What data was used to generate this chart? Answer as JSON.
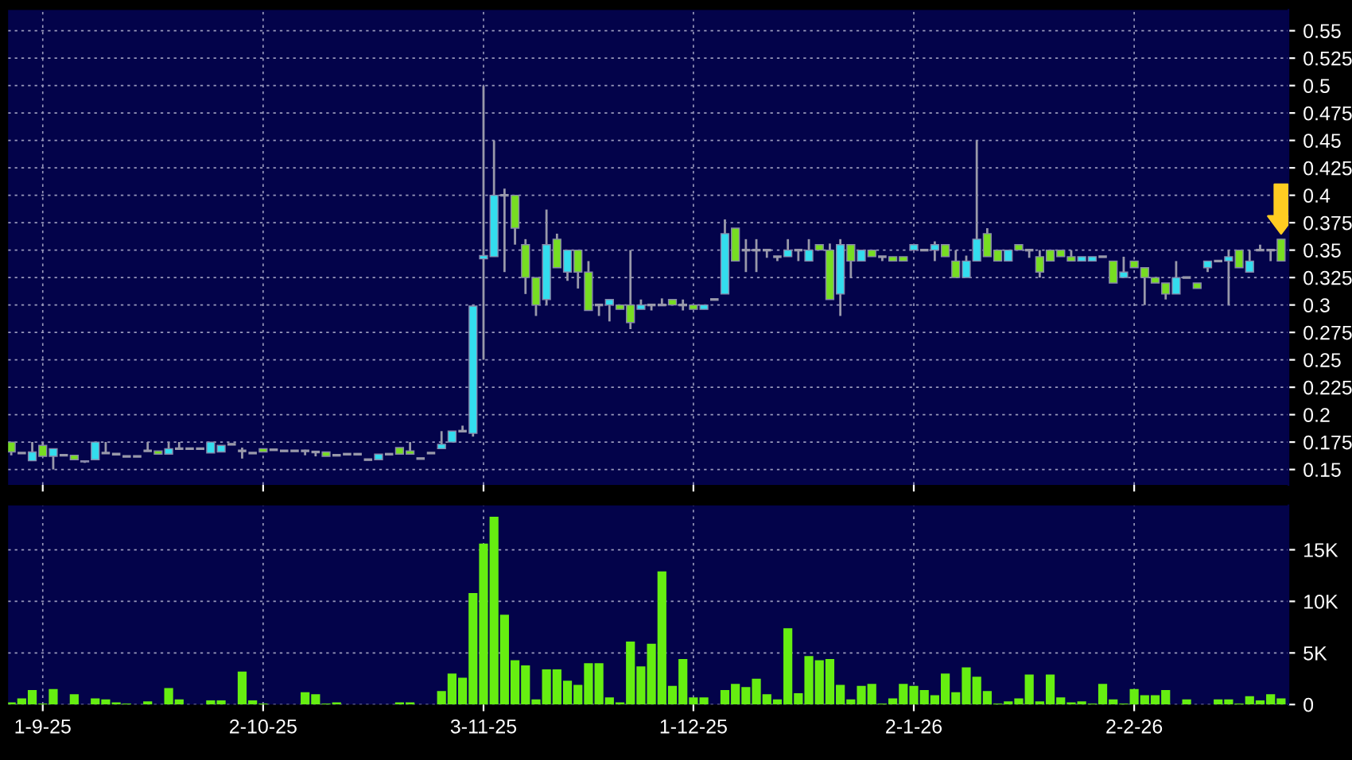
{
  "chart_data": [
    {
      "type": "candlestick",
      "tick_labels": "y",
      "grid": true,
      "categories": [
        null,
        null,
        null,
        null,
        null,
        null,
        null,
        null,
        null,
        null,
        null,
        null,
        null,
        null,
        null,
        null,
        null,
        null,
        null,
        null,
        null,
        null,
        null,
        null,
        null,
        null,
        null,
        null,
        null,
        null,
        null,
        null,
        null,
        null,
        null,
        null,
        null,
        null,
        null,
        null,
        null,
        null,
        null,
        null,
        null,
        null,
        null,
        null,
        null,
        null,
        null,
        null,
        null,
        null,
        null,
        null,
        null,
        null,
        null,
        null,
        null,
        null,
        null,
        null,
        null,
        null,
        null,
        null,
        null,
        null,
        null,
        null,
        null,
        null,
        null,
        null,
        null,
        null,
        null,
        null,
        null,
        null,
        null,
        null,
        null,
        null,
        null,
        null,
        null,
        null,
        null,
        null,
        null,
        null,
        null,
        null,
        null,
        null,
        null,
        null,
        null,
        null,
        null,
        null,
        null,
        null,
        null,
        null,
        null,
        null,
        null,
        null,
        null,
        null,
        null,
        null,
        null,
        null,
        null,
        null,
        null,
        null
      ],
      "ohlc": [
        [
          0.175,
          0.175,
          0.163,
          0.166
        ],
        [
          0.165,
          0.165,
          0.165,
          0.165
        ],
        [
          0.158,
          0.175,
          0.158,
          0.166
        ],
        [
          0.172,
          0.175,
          0.162,
          0.162
        ],
        [
          0.162,
          0.169,
          0.15,
          0.169
        ],
        [
          0.163,
          0.163,
          0.163,
          0.163
        ],
        [
          0.163,
          0.163,
          0.159,
          0.159
        ],
        [
          0.157,
          0.158,
          0.156,
          0.158
        ],
        [
          0.159,
          0.175,
          0.159,
          0.175
        ],
        [
          0.165,
          0.175,
          0.165,
          0.165
        ],
        [
          0.164,
          0.164,
          0.164,
          0.164
        ],
        [
          0.162,
          0.162,
          0.162,
          0.162
        ],
        [
          0.162,
          0.162,
          0.162,
          0.162
        ],
        [
          0.167,
          0.175,
          0.167,
          0.167
        ],
        [
          0.167,
          0.167,
          0.164,
          0.164
        ],
        [
          0.164,
          0.175,
          0.164,
          0.169
        ],
        [
          0.169,
          0.175,
          0.169,
          0.169
        ],
        [
          0.169,
          0.169,
          0.169,
          0.169
        ],
        [
          0.169,
          0.169,
          0.169,
          0.169
        ],
        [
          0.165,
          0.175,
          0.165,
          0.175
        ],
        [
          0.166,
          0.172,
          0.166,
          0.172
        ],
        [
          0.173,
          0.173,
          0.173,
          0.173
        ],
        [
          0.167,
          0.17,
          0.16,
          0.167
        ],
        [
          0.165,
          0.165,
          0.165,
          0.165
        ],
        [
          0.169,
          0.169,
          0.166,
          0.166
        ],
        [
          0.168,
          0.168,
          0.168,
          0.168
        ],
        [
          0.167,
          0.167,
          0.167,
          0.167
        ],
        [
          0.167,
          0.167,
          0.167,
          0.167
        ],
        [
          0.167,
          0.168,
          0.163,
          0.167
        ],
        [
          0.166,
          0.166,
          0.162,
          0.166
        ],
        [
          0.166,
          0.166,
          0.162,
          0.162
        ],
        [
          0.163,
          0.163,
          0.163,
          0.163
        ],
        [
          0.164,
          0.164,
          0.164,
          0.164
        ],
        [
          0.164,
          0.164,
          0.164,
          0.164
        ],
        [
          0.159,
          0.159,
          0.159,
          0.159
        ],
        [
          0.159,
          0.164,
          0.159,
          0.164
        ],
        [
          0.164,
          0.164,
          0.164,
          0.164
        ],
        [
          0.17,
          0.17,
          0.164,
          0.164
        ],
        [
          0.167,
          0.175,
          0.164,
          0.164
        ],
        [
          0.16,
          0.16,
          0.16,
          0.16
        ],
        [
          0.165,
          0.165,
          0.165,
          0.165
        ],
        [
          0.169,
          0.185,
          0.169,
          0.173
        ],
        [
          0.175,
          0.185,
          0.175,
          0.185
        ],
        [
          0.185,
          0.19,
          0.185,
          0.185
        ],
        [
          0.183,
          0.3,
          0.18,
          0.299
        ],
        [
          0.342,
          0.5,
          0.25,
          0.345
        ],
        [
          0.344,
          0.45,
          0.344,
          0.4
        ],
        [
          0.4,
          0.406,
          0.33,
          0.4
        ],
        [
          0.4,
          0.4,
          0.355,
          0.37
        ],
        [
          0.355,
          0.36,
          0.31,
          0.325
        ],
        [
          0.325,
          0.325,
          0.29,
          0.3
        ],
        [
          0.305,
          0.387,
          0.3,
          0.355
        ],
        [
          0.36,
          0.365,
          0.334,
          0.334
        ],
        [
          0.33,
          0.35,
          0.322,
          0.35
        ],
        [
          0.35,
          0.35,
          0.315,
          0.33
        ],
        [
          0.33,
          0.34,
          0.295,
          0.295
        ],
        [
          0.3,
          0.3,
          0.29,
          0.3
        ],
        [
          0.3,
          0.305,
          0.285,
          0.305
        ],
        [
          0.3,
          0.3,
          0.296,
          0.296
        ],
        [
          0.3,
          0.35,
          0.278,
          0.284
        ],
        [
          0.296,
          0.305,
          0.296,
          0.3
        ],
        [
          0.3,
          0.3,
          0.295,
          0.3
        ],
        [
          0.3,
          0.306,
          0.3,
          0.3
        ],
        [
          0.305,
          0.305,
          0.3,
          0.3
        ],
        [
          0.3,
          0.305,
          0.295,
          0.3
        ],
        [
          0.3,
          0.3,
          0.296,
          0.296
        ],
        [
          0.296,
          0.3,
          0.296,
          0.3
        ],
        [
          0.305,
          0.305,
          0.305,
          0.305
        ],
        [
          0.31,
          0.378,
          0.31,
          0.365
        ],
        [
          0.37,
          0.37,
          0.34,
          0.34
        ],
        [
          0.35,
          0.36,
          0.33,
          0.35
        ],
        [
          0.35,
          0.36,
          0.33,
          0.35
        ],
        [
          0.35,
          0.35,
          0.343,
          0.35
        ],
        [
          0.344,
          0.344,
          0.34,
          0.344
        ],
        [
          0.344,
          0.36,
          0.344,
          0.35
        ],
        [
          0.35,
          0.35,
          0.34,
          0.35
        ],
        [
          0.34,
          0.36,
          0.34,
          0.35
        ],
        [
          0.355,
          0.355,
          0.35,
          0.35
        ],
        [
          0.35,
          0.356,
          0.305,
          0.305
        ],
        [
          0.31,
          0.36,
          0.29,
          0.355
        ],
        [
          0.355,
          0.355,
          0.325,
          0.34
        ],
        [
          0.34,
          0.35,
          0.34,
          0.35
        ],
        [
          0.35,
          0.35,
          0.344,
          0.344
        ],
        [
          0.344,
          0.344,
          0.34,
          0.344
        ],
        [
          0.344,
          0.344,
          0.34,
          0.34
        ],
        [
          0.344,
          0.344,
          0.34,
          0.34
        ],
        [
          0.35,
          0.355,
          0.35,
          0.355
        ],
        [
          0.35,
          0.35,
          0.35,
          0.35
        ],
        [
          0.35,
          0.358,
          0.34,
          0.355
        ],
        [
          0.355,
          0.355,
          0.344,
          0.344
        ],
        [
          0.34,
          0.35,
          0.325,
          0.325
        ],
        [
          0.325,
          0.345,
          0.325,
          0.34
        ],
        [
          0.34,
          0.45,
          0.34,
          0.36
        ],
        [
          0.365,
          0.37,
          0.344,
          0.344
        ],
        [
          0.35,
          0.35,
          0.34,
          0.34
        ],
        [
          0.34,
          0.35,
          0.34,
          0.35
        ],
        [
          0.355,
          0.355,
          0.35,
          0.35
        ],
        [
          0.35,
          0.35,
          0.343,
          0.35
        ],
        [
          0.344,
          0.35,
          0.325,
          0.33
        ],
        [
          0.35,
          0.35,
          0.34,
          0.34
        ],
        [
          0.35,
          0.35,
          0.344,
          0.344
        ],
        [
          0.344,
          0.35,
          0.34,
          0.34
        ],
        [
          0.34,
          0.344,
          0.34,
          0.344
        ],
        [
          0.34,
          0.344,
          0.34,
          0.344
        ],
        [
          0.344,
          0.344,
          0.344,
          0.344
        ],
        [
          0.34,
          0.34,
          0.32,
          0.32
        ],
        [
          0.325,
          0.344,
          0.325,
          0.33
        ],
        [
          0.34,
          0.34,
          0.334,
          0.334
        ],
        [
          0.334,
          0.334,
          0.3,
          0.325
        ],
        [
          0.325,
          0.325,
          0.32,
          0.32
        ],
        [
          0.32,
          0.32,
          0.305,
          0.31
        ],
        [
          0.31,
          0.34,
          0.31,
          0.325
        ],
        [
          0.325,
          0.325,
          0.325,
          0.325
        ],
        [
          0.32,
          0.32,
          0.315,
          0.315
        ],
        [
          0.334,
          0.34,
          0.33,
          0.34
        ],
        [
          0.34,
          0.34,
          0.34,
          0.34
        ],
        [
          0.34,
          0.35,
          0.3,
          0.344
        ],
        [
          0.35,
          0.35,
          0.334,
          0.334
        ],
        [
          0.33,
          0.35,
          0.33,
          0.34
        ],
        [
          0.35,
          0.355,
          0.35,
          0.35
        ],
        [
          0.35,
          0.35,
          0.34,
          0.35
        ],
        [
          0.36,
          0.36,
          0.34,
          0.34
        ]
      ],
      "colors": [
        "#77dd22",
        "#9999aa",
        "#33ddee",
        "#77dd22",
        "#33ddee",
        "#9999aa",
        "#77dd22",
        "#33ddee",
        "#33ddee",
        "#9999aa",
        "#9999aa",
        "#9999aa",
        "#9999aa",
        "#9999aa",
        "#77dd22",
        "#33ddee",
        "#9999aa",
        "#9999aa",
        "#9999aa",
        "#33ddee",
        "#33ddee",
        "#9999aa",
        "#9999aa",
        "#9999aa",
        "#77dd22",
        "#9999aa",
        "#9999aa",
        "#9999aa",
        "#9999aa",
        "#9999aa",
        "#77dd22",
        "#9999aa",
        "#9999aa",
        "#9999aa",
        "#9999aa",
        "#33ddee",
        "#9999aa",
        "#77dd22",
        "#77dd22",
        "#9999aa",
        "#9999aa",
        "#33ddee",
        "#33ddee",
        "#9999aa",
        "#33ddee",
        "#33ddee",
        "#33ddee",
        "#9999aa",
        "#77dd22",
        "#77dd22",
        "#77dd22",
        "#33ddee",
        "#77dd22",
        "#33ddee",
        "#77dd22",
        "#77dd22",
        "#9999aa",
        "#33ddee",
        "#77dd22",
        "#77dd22",
        "#33ddee",
        "#9999aa",
        "#9999aa",
        "#77dd22",
        "#9999aa",
        "#77dd22",
        "#33ddee",
        "#9999aa",
        "#33ddee",
        "#77dd22",
        "#9999aa",
        "#9999aa",
        "#9999aa",
        "#9999aa",
        "#33ddee",
        "#9999aa",
        "#33ddee",
        "#77dd22",
        "#77dd22",
        "#33ddee",
        "#77dd22",
        "#33ddee",
        "#77dd22",
        "#9999aa",
        "#77dd22",
        "#77dd22",
        "#33ddee",
        "#9999aa",
        "#33ddee",
        "#77dd22",
        "#77dd22",
        "#33ddee",
        "#33ddee",
        "#77dd22",
        "#77dd22",
        "#33ddee",
        "#77dd22",
        "#9999aa",
        "#77dd22",
        "#77dd22",
        "#77dd22",
        "#77dd22",
        "#33ddee",
        "#33ddee",
        "#9999aa",
        "#77dd22",
        "#33ddee",
        "#77dd22",
        "#77dd22",
        "#77dd22",
        "#77dd22",
        "#33ddee",
        "#9999aa",
        "#77dd22",
        "#33ddee",
        "#9999aa",
        "#33ddee",
        "#77dd22",
        "#33ddee",
        "#9999aa",
        "#9999aa",
        "#77dd22"
      ],
      "ylim": [
        0.136,
        0.569
      ],
      "yticks": [
        0.15,
        0.175,
        0.2,
        0.225,
        0.25,
        0.275,
        0.3,
        0.325,
        0.35,
        0.375,
        0.4,
        0.425,
        0.45,
        0.475,
        0.5,
        0.525,
        0.55
      ]
    },
    {
      "type": "bar",
      "grid": true,
      "color": "#66ee11",
      "categories": [
        null,
        null,
        null,
        "1-9-25",
        null,
        null,
        null,
        null,
        null,
        null,
        null,
        null,
        null,
        null,
        null,
        null,
        null,
        null,
        null,
        null,
        null,
        null,
        null,
        null,
        "2-10-25",
        null,
        null,
        null,
        null,
        null,
        null,
        null,
        null,
        null,
        null,
        null,
        null,
        null,
        null,
        null,
        null,
        null,
        null,
        null,
        null,
        "3-11-25",
        null,
        null,
        null,
        null,
        null,
        null,
        null,
        null,
        null,
        null,
        null,
        null,
        null,
        null,
        null,
        null,
        null,
        null,
        null,
        "1-12-25",
        null,
        null,
        null,
        null,
        null,
        null,
        null,
        null,
        null,
        null,
        null,
        null,
        null,
        null,
        null,
        null,
        null,
        null,
        null,
        null,
        "2-1-26",
        null,
        null,
        null,
        null,
        null,
        null,
        null,
        null,
        null,
        null,
        null,
        null,
        null,
        null,
        null,
        null,
        null,
        null,
        null,
        null,
        "2-2-26",
        null,
        null,
        null,
        null,
        null,
        null,
        null,
        null,
        null,
        null,
        null,
        null,
        null,
        null
      ],
      "values": [
        0.2,
        0.6,
        1.4,
        0.1,
        1.5,
        0,
        1.0,
        0,
        0.6,
        0.5,
        0.2,
        0.1,
        0,
        0.3,
        0,
        1.6,
        0.5,
        0,
        0,
        0.4,
        0.4,
        0,
        3.2,
        0.4,
        0.1,
        0,
        0,
        0,
        1.2,
        1.0,
        0.1,
        0.2,
        0,
        0,
        0,
        0,
        0,
        0.2,
        0.2,
        0,
        0,
        1.3,
        3.0,
        2.6,
        10.8,
        15.6,
        18.2,
        8.7,
        4.3,
        3.8,
        0.5,
        3.4,
        3.4,
        2.3,
        1.9,
        4.0,
        4.0,
        0.7,
        0.2,
        6.1,
        3.7,
        5.9,
        12.9,
        1.8,
        4.4,
        0.7,
        0.7,
        0,
        1.4,
        2.0,
        1.7,
        2.5,
        1.0,
        0.5,
        7.4,
        1.1,
        4.7,
        4.3,
        4.4,
        1.9,
        0.5,
        1.8,
        2.0,
        0.1,
        0.6,
        2.0,
        1.8,
        1.4,
        0.9,
        3.0,
        1.2,
        3.6,
        2.7,
        1.3,
        0.1,
        0.3,
        0.6,
        2.9,
        0.3,
        2.9,
        0.7,
        0.2,
        0.3,
        0.1,
        2.0,
        0.5,
        0.1,
        1.5,
        0.9,
        0.9,
        1.4,
        0,
        0.5,
        0,
        0,
        0.5,
        0.5,
        0.1,
        0.8,
        0.4,
        1.0,
        0.6
      ],
      "ylim": [
        0,
        19.3
      ],
      "yticks": [
        0,
        {
          "value": 5,
          "label": "5K"
        },
        {
          "value": 10,
          "label": "10K"
        },
        {
          "value": 15,
          "label": "15K"
        }
      ]
    }
  ]
}
